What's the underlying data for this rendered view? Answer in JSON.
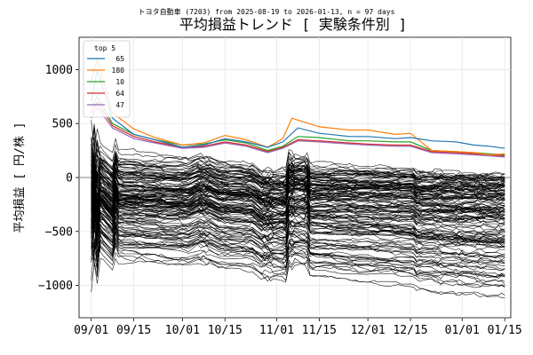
{
  "chart_data": {
    "type": "line",
    "subtitle": "トヨタ自動車 (7203) from 2025-08-19 to 2026-01-13, n = 97 days",
    "title": "平均損益トレンド [ 実験条件別 ]",
    "ylabel": "平均損益 [ 円/株 ]",
    "xlabel": "",
    "x_range": [
      "2025-08-28",
      "2026-01-17"
    ],
    "ylim": [
      -1300,
      1300
    ],
    "x_ticks": [
      {
        "date": "2025-09-01",
        "label": "09/01"
      },
      {
        "date": "2025-09-15",
        "label": "09/15"
      },
      {
        "date": "2025-10-01",
        "label": "10/01"
      },
      {
        "date": "2025-10-15",
        "label": "10/15"
      },
      {
        "date": "2025-11-01",
        "label": "11/01"
      },
      {
        "date": "2025-11-15",
        "label": "11/15"
      },
      {
        "date": "2025-12-01",
        "label": "12/01"
      },
      {
        "date": "2025-12-15",
        "label": "12/15"
      },
      {
        "date": "2026-01-01",
        "label": "01/01"
      },
      {
        "date": "2026-01-15",
        "label": "01/15"
      }
    ],
    "y_ticks": [
      {
        "value": 1000,
        "label": "1000"
      },
      {
        "value": 500,
        "label": "500"
      },
      {
        "value": 0,
        "label": "0"
      },
      {
        "value": -500,
        "label": "−500"
      },
      {
        "value": -1000,
        "label": "−1000"
      }
    ],
    "grid": true,
    "zero_line": true,
    "legend": {
      "title": "top 5",
      "placement": "top-left",
      "entries": [
        {
          "label": "65",
          "color": "#1f77b4"
        },
        {
          "label": "180",
          "color": "#ff7f0e"
        },
        {
          "label": "10",
          "color": "#2ca02c"
        },
        {
          "label": "64",
          "color": "#d62728"
        },
        {
          "label": "47",
          "color": "#9467bd"
        }
      ]
    },
    "top_series": [
      {
        "name": "65",
        "color": "#1f77b4",
        "points": [
          [
            "2025-09-01",
            700
          ],
          [
            "2025-09-03",
            1000
          ],
          [
            "2025-09-08",
            550
          ],
          [
            "2025-09-15",
            400
          ],
          [
            "2025-09-22",
            350
          ],
          [
            "2025-10-01",
            280
          ],
          [
            "2025-10-08",
            300
          ],
          [
            "2025-10-15",
            360
          ],
          [
            "2025-10-22",
            330
          ],
          [
            "2025-10-29",
            280
          ],
          [
            "2025-11-03",
            330
          ],
          [
            "2025-11-08",
            460
          ],
          [
            "2025-11-15",
            410
          ],
          [
            "2025-11-25",
            380
          ],
          [
            "2025-12-01",
            380
          ],
          [
            "2025-12-10",
            360
          ],
          [
            "2025-12-15",
            370
          ],
          [
            "2025-12-22",
            340
          ],
          [
            "2025-12-30",
            330
          ],
          [
            "2026-01-05",
            300
          ],
          [
            "2026-01-10",
            290
          ],
          [
            "2026-01-15",
            270
          ]
        ]
      },
      {
        "name": "180",
        "color": "#ff7f0e",
        "points": [
          [
            "2025-09-01",
            900
          ],
          [
            "2025-09-03",
            1100
          ],
          [
            "2025-09-08",
            600
          ],
          [
            "2025-09-15",
            450
          ],
          [
            "2025-09-22",
            370
          ],
          [
            "2025-10-01",
            300
          ],
          [
            "2025-10-08",
            320
          ],
          [
            "2025-10-15",
            390
          ],
          [
            "2025-10-22",
            350
          ],
          [
            "2025-10-29",
            280
          ],
          [
            "2025-11-03",
            360
          ],
          [
            "2025-11-06",
            550
          ],
          [
            "2025-11-15",
            470
          ],
          [
            "2025-11-25",
            440
          ],
          [
            "2025-12-01",
            440
          ],
          [
            "2025-12-10",
            400
          ],
          [
            "2025-12-15",
            410
          ],
          [
            "2025-12-22",
            250
          ],
          [
            "2025-12-30",
            240
          ],
          [
            "2026-01-05",
            230
          ],
          [
            "2026-01-10",
            210
          ],
          [
            "2026-01-15",
            220
          ]
        ]
      },
      {
        "name": "10",
        "color": "#2ca02c",
        "points": [
          [
            "2025-09-01",
            650
          ],
          [
            "2025-09-03",
            750
          ],
          [
            "2025-09-08",
            500
          ],
          [
            "2025-09-15",
            400
          ],
          [
            "2025-09-22",
            350
          ],
          [
            "2025-10-01",
            300
          ],
          [
            "2025-10-08",
            310
          ],
          [
            "2025-10-15",
            350
          ],
          [
            "2025-10-22",
            320
          ],
          [
            "2025-10-29",
            250
          ],
          [
            "2025-11-03",
            290
          ],
          [
            "2025-11-08",
            380
          ],
          [
            "2025-11-15",
            370
          ],
          [
            "2025-11-25",
            340
          ],
          [
            "2025-12-01",
            340
          ],
          [
            "2025-12-10",
            330
          ],
          [
            "2025-12-15",
            330
          ],
          [
            "2025-12-22",
            250
          ],
          [
            "2025-12-30",
            240
          ],
          [
            "2026-01-05",
            230
          ],
          [
            "2026-01-10",
            220
          ],
          [
            "2026-01-15",
            210
          ]
        ]
      },
      {
        "name": "64",
        "color": "#d62728",
        "points": [
          [
            "2025-09-01",
            600
          ],
          [
            "2025-09-03",
            700
          ],
          [
            "2025-09-08",
            480
          ],
          [
            "2025-09-15",
            380
          ],
          [
            "2025-09-22",
            330
          ],
          [
            "2025-10-01",
            280
          ],
          [
            "2025-10-08",
            290
          ],
          [
            "2025-10-15",
            330
          ],
          [
            "2025-10-22",
            300
          ],
          [
            "2025-10-29",
            240
          ],
          [
            "2025-11-03",
            280
          ],
          [
            "2025-11-08",
            350
          ],
          [
            "2025-11-15",
            340
          ],
          [
            "2025-11-25",
            320
          ],
          [
            "2025-12-01",
            310
          ],
          [
            "2025-12-10",
            300
          ],
          [
            "2025-12-15",
            300
          ],
          [
            "2025-12-22",
            240
          ],
          [
            "2025-12-30",
            230
          ],
          [
            "2026-01-05",
            220
          ],
          [
            "2026-01-10",
            210
          ],
          [
            "2026-01-15",
            200
          ]
        ]
      },
      {
        "name": "47",
        "color": "#9467bd",
        "points": [
          [
            "2025-09-01",
            550
          ],
          [
            "2025-09-03",
            650
          ],
          [
            "2025-09-08",
            460
          ],
          [
            "2025-09-15",
            360
          ],
          [
            "2025-09-22",
            320
          ],
          [
            "2025-10-01",
            270
          ],
          [
            "2025-10-08",
            280
          ],
          [
            "2025-10-15",
            320
          ],
          [
            "2025-10-22",
            290
          ],
          [
            "2025-10-29",
            230
          ],
          [
            "2025-11-03",
            270
          ],
          [
            "2025-11-08",
            340
          ],
          [
            "2025-11-15",
            330
          ],
          [
            "2025-11-25",
            310
          ],
          [
            "2025-12-01",
            300
          ],
          [
            "2025-12-10",
            290
          ],
          [
            "2025-12-15",
            290
          ],
          [
            "2025-12-22",
            230
          ],
          [
            "2025-12-30",
            220
          ],
          [
            "2026-01-05",
            210
          ],
          [
            "2026-01-10",
            200
          ],
          [
            "2026-01-15",
            190
          ]
        ]
      }
    ],
    "other_series": {
      "description": "remaining experimental conditions (black lines), approximate",
      "count": 150,
      "color": "#000000",
      "start_date": "2025-09-01",
      "end_date": "2026-01-15",
      "final_value_range": [
        -1150,
        50
      ],
      "initial_value_range": [
        -650,
        1050
      ]
    }
  }
}
